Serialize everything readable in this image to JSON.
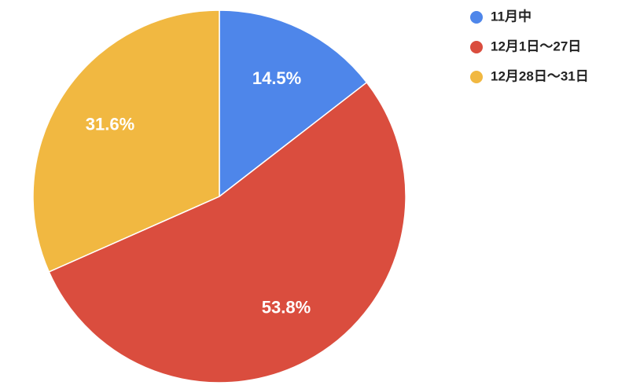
{
  "chart_data": {
    "type": "pie",
    "categories": [
      "11月中",
      "12月1日〜27日",
      "12月28日〜31日"
    ],
    "values": [
      14.5,
      53.8,
      31.6
    ],
    "value_labels": [
      "14.5%",
      "53.8%",
      "31.6%"
    ],
    "colors": [
      "#4e86ea",
      "#da4d3e",
      "#f1b841"
    ],
    "legend": "right"
  }
}
